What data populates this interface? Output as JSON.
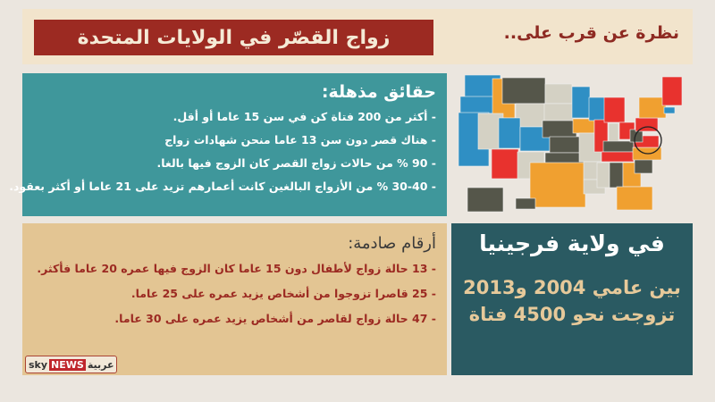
{
  "header": {
    "title": "زواج القصّر في الولايات المتحدة",
    "subtitle": "نظرة عن قرب على.."
  },
  "facts": {
    "heading": "حقائق مذهلة:",
    "items": [
      "- أكثر من 200 فتاة كن في سن 15 عاما أو أقل.",
      "- هناك قصر دون سن 13 عاما منحن شهادات زواج",
      "- 90 % من حالات زواج القصر كان الزوج فيها بالغا.",
      "- 30-40 % من الأزواج البالغين كانت أعمارهم تزيد على 21 عاما أو أكثر بعقود."
    ]
  },
  "numbers": {
    "heading": "أرقام صادمة:",
    "items": [
      "- 13 حالة زواج لأطفال دون 15 عاما كان الزوج فيها عمره 20 عاما فأكثر.",
      "- 25 قاصرا تزوجوا من أشخاص يزيد عمره على 25 عاما.",
      "- 47 حالة زواج لقاصر من أشخاص يزيد عمره على 30 عاما."
    ]
  },
  "virginia": {
    "heading": "في ولاية فرجينيا",
    "line1": "بين عامي 2004 و2013",
    "line2": "تزوجت نحو 4500 فتاة"
  },
  "map": {
    "label": "فرجينيا",
    "colors": {
      "blue": "#2f8fc4",
      "orange": "#f0a030",
      "red": "#e8322e",
      "dark": "#55564a",
      "light": "#d4d1c4"
    }
  },
  "logo": {
    "sky": "sky",
    "news": "NEWS",
    "arabic": "عربية"
  }
}
